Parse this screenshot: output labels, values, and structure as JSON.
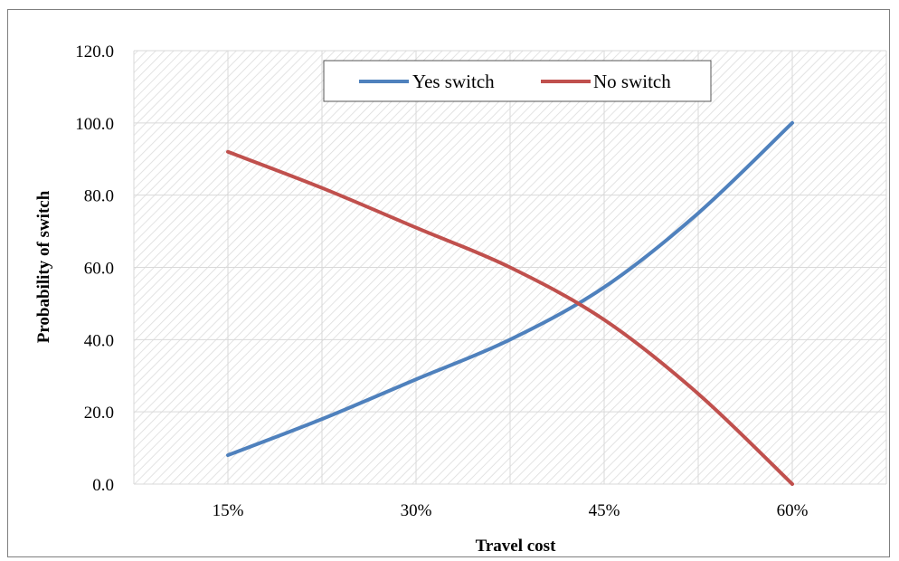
{
  "chart_data": {
    "type": "line",
    "categories": [
      "15%",
      "30%",
      "45%",
      "60%"
    ],
    "x": [
      15,
      30,
      45,
      60
    ],
    "series": [
      {
        "name": "Yes switch",
        "color": "#4f81bd",
        "x": [
          15,
          22.5,
          30,
          37.5,
          45,
          52.5,
          60
        ],
        "values": [
          8,
          18,
          29,
          40,
          54.5,
          75,
          100
        ]
      },
      {
        "name": "No switch",
        "color": "#c0504d",
        "x": [
          15,
          22.5,
          30,
          37.5,
          45,
          52.5,
          60
        ],
        "values": [
          92,
          82,
          71,
          60,
          45.5,
          25,
          0
        ]
      }
    ],
    "xlabel": "Travel cost",
    "ylabel": "Probability of switch",
    "ylim": [
      0,
      120
    ],
    "yticks": [
      "0.0",
      "20.0",
      "40.0",
      "60.0",
      "80.0",
      "100.0",
      "120.0"
    ],
    "grid": true,
    "legend": "top-center"
  }
}
